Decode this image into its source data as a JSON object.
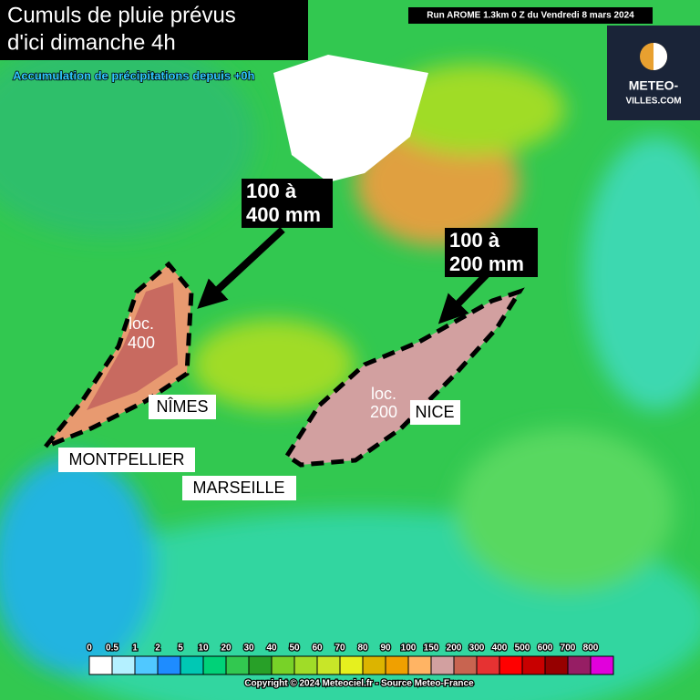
{
  "header": {
    "title_lines": [
      "Cumuls de pluie prévus",
      "d'ici dimanche 4h"
    ],
    "subtitle": "Accumulation de précipitations depuis +0h",
    "run": "Run AROME 1.3km 0 Z du Vendredi 8 mars 2024"
  },
  "logo": {
    "lines": [
      "METEO-",
      "VILLES.COM"
    ]
  },
  "annotations": [
    {
      "lines": [
        "100 à",
        "400 mm"
      ]
    },
    {
      "lines": [
        "100 à",
        "200 mm"
      ]
    },
    {
      "lines": [
        "loc.",
        "400"
      ]
    },
    {
      "lines": [
        "loc.",
        "200"
      ]
    }
  ],
  "cities": [
    "NÎMES",
    "MONTPELLIER",
    "MARSEILLE",
    "NICE"
  ],
  "legend": {
    "labels": [
      "0",
      "0.5",
      "1",
      "2",
      "5",
      "10",
      "20",
      "30",
      "40",
      "50",
      "60",
      "70",
      "80",
      "90",
      "100",
      "150",
      "200",
      "300",
      "400",
      "500",
      "600",
      "700",
      "800"
    ],
    "colors": [
      "#ffffff",
      "#b4f0ff",
      "#50c8ff",
      "#1e8cff",
      "#00c8b4",
      "#00d278",
      "#32c850",
      "#28a028",
      "#78d228",
      "#a0dc28",
      "#c8e628",
      "#e6f01e",
      "#dcb400",
      "#f0a000",
      "#ffb464",
      "#d2a0a0",
      "#c86450",
      "#e63232",
      "#ff0000",
      "#c80000",
      "#960000",
      "#961e64",
      "#e100dc"
    ]
  },
  "footer": "Copyright © 2024 Meteociel.fr - Source Meteo-France"
}
